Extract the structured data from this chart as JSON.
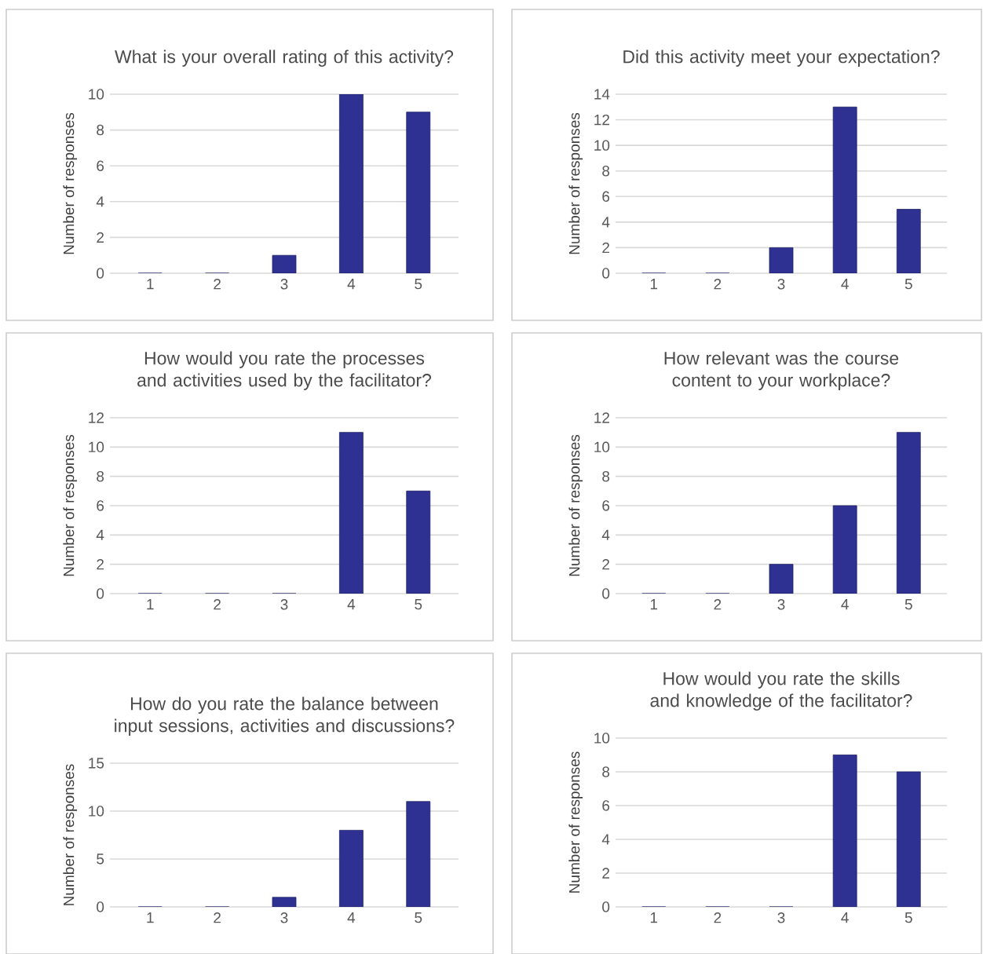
{
  "chart_data": [
    {
      "type": "bar",
      "title": "What is your overall rating of this activity?",
      "ylabel": "Number of responses",
      "categories": [
        "1",
        "2",
        "3",
        "4",
        "5"
      ],
      "values": [
        0,
        0,
        1,
        10,
        9
      ],
      "color": "#2e3192",
      "ylim": [
        0,
        10
      ],
      "yticks": [
        0,
        2,
        4,
        6,
        8,
        10
      ],
      "grid": "y"
    },
    {
      "type": "bar",
      "title": "Did this activity meet your expectation?",
      "ylabel": "Number of responses",
      "categories": [
        "1",
        "2",
        "3",
        "4",
        "5"
      ],
      "values": [
        0,
        0,
        2,
        13,
        5
      ],
      "color": "#2e3192",
      "ylim": [
        0,
        14
      ],
      "yticks": [
        0,
        2,
        4,
        6,
        8,
        10,
        12,
        14
      ],
      "grid": "y"
    },
    {
      "type": "bar",
      "title": "How would you rate the processes and activities used by the facilitator?",
      "ylabel": "Number of responses",
      "categories": [
        "1",
        "2",
        "3",
        "4",
        "5"
      ],
      "values": [
        0,
        0,
        0,
        11,
        7
      ],
      "color": "#2e3192",
      "ylim": [
        0,
        12
      ],
      "yticks": [
        0,
        2,
        4,
        6,
        8,
        10,
        12
      ],
      "grid": "y"
    },
    {
      "type": "bar",
      "title": "How relevant was the course content to your workplace?",
      "ylabel": "Number of responses",
      "categories": [
        "1",
        "2",
        "3",
        "4",
        "5"
      ],
      "values": [
        0,
        0,
        2,
        6,
        11
      ],
      "color": "#2e3192",
      "ylim": [
        0,
        12
      ],
      "yticks": [
        0,
        2,
        4,
        6,
        8,
        10,
        12
      ],
      "grid": "y"
    },
    {
      "type": "bar",
      "title": "How do you rate the balance between input sessions, activities and discussions?",
      "ylabel": "Number of responses",
      "categories": [
        "1",
        "2",
        "3",
        "4",
        "5"
      ],
      "values": [
        0,
        0,
        1,
        8,
        11
      ],
      "color": "#2e3192",
      "ylim": [
        0,
        15
      ],
      "yticks": [
        0,
        5,
        10,
        15
      ],
      "grid": "y"
    },
    {
      "type": "bar",
      "title": "How would you rate the skills and knowledge of the facilitator?",
      "ylabel": "Number of responses",
      "categories": [
        "1",
        "2",
        "3",
        "4",
        "5"
      ],
      "values": [
        0,
        0,
        0,
        9,
        8
      ],
      "color": "#2e3192",
      "ylim": [
        0,
        10
      ],
      "yticks": [
        0,
        2,
        4,
        6,
        8,
        10
      ],
      "grid": "y"
    }
  ]
}
